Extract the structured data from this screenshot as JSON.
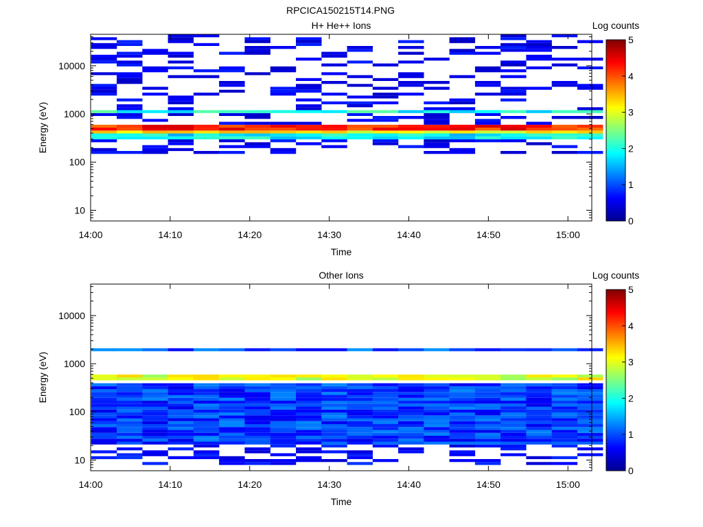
{
  "figure_title": "RPCICA150215T14.PNG",
  "chart_data": [
    {
      "type": "heatmap",
      "title": "H+ He++ Ions",
      "xlabel": "Time",
      "ylabel": "Energy (eV)",
      "colorbar_label": "Log counts",
      "x_range": [
        "14:00",
        "15:03"
      ],
      "xticks": [
        "14:00",
        "14:10",
        "14:20",
        "14:30",
        "14:40",
        "14:50",
        "15:00"
      ],
      "y_scale": "log",
      "y_range": [
        6,
        45000
      ],
      "yticks": [
        "10",
        "100",
        "1000",
        "10000"
      ],
      "colorbar_range": [
        0,
        5
      ],
      "colorbar_ticks": [
        "0",
        "1",
        "2",
        "3",
        "4",
        "5"
      ],
      "colormap": "jet",
      "time_bins": [
        "14:01:40",
        "14:04:53",
        "14:08:06",
        "14:11:19",
        "14:14:32",
        "14:17:45",
        "14:20:58",
        "14:24:11",
        "14:27:24",
        "14:30:37",
        "14:33:50",
        "14:37:03",
        "14:40:16",
        "14:43:29",
        "14:46:42",
        "14:49:55",
        "14:53:08",
        "14:56:21",
        "14:59:34",
        "15:02:47"
      ],
      "features": [
        {
          "energy_eV": [
            1050,
            1250
          ],
          "log_counts": 2.0
        },
        {
          "energy_eV": [
            480,
            560
          ],
          "log_counts": 4.2
        },
        {
          "energy_eV": [
            400,
            470
          ],
          "log_counts": 3.2
        },
        {
          "energy_eV": [
            280,
            380
          ],
          "log_counts": 1.8
        },
        {
          "energy_eV": [
            150,
            45000
          ],
          "log_counts": 0.3,
          "note": "sparse background"
        }
      ]
    },
    {
      "type": "heatmap",
      "title": "Other Ions",
      "xlabel": "Time",
      "ylabel": "Energy (eV)",
      "colorbar_label": "Log counts",
      "x_range": [
        "14:00",
        "15:03"
      ],
      "xticks": [
        "14:00",
        "14:10",
        "14:20",
        "14:30",
        "14:40",
        "14:50",
        "15:00"
      ],
      "y_scale": "log",
      "y_range": [
        6,
        45000
      ],
      "yticks": [
        "10",
        "100",
        "1000",
        "10000"
      ],
      "colorbar_range": [
        0,
        5
      ],
      "colorbar_ticks": [
        "0",
        "1",
        "2",
        "3",
        "4",
        "5"
      ],
      "colormap": "jet",
      "time_bins": [
        "14:01:40",
        "14:04:53",
        "14:08:06",
        "14:11:19",
        "14:14:32",
        "14:17:45",
        "14:20:58",
        "14:24:11",
        "14:27:24",
        "14:30:37",
        "14:33:50",
        "14:37:03",
        "14:40:16",
        "14:43:29",
        "14:46:42",
        "14:49:55",
        "14:53:08",
        "14:56:21",
        "14:59:34",
        "15:02:47"
      ],
      "features": [
        {
          "energy_eV": [
            1900,
            2100
          ],
          "log_counts": 1.0
        },
        {
          "energy_eV": [
            480,
            600
          ],
          "log_counts": 3.0
        },
        {
          "energy_eV": [
            20,
            400
          ],
          "log_counts": 0.9
        },
        {
          "energy_eV": [
            8,
            20
          ],
          "log_counts": 0.4,
          "note": "sparse"
        }
      ]
    }
  ]
}
